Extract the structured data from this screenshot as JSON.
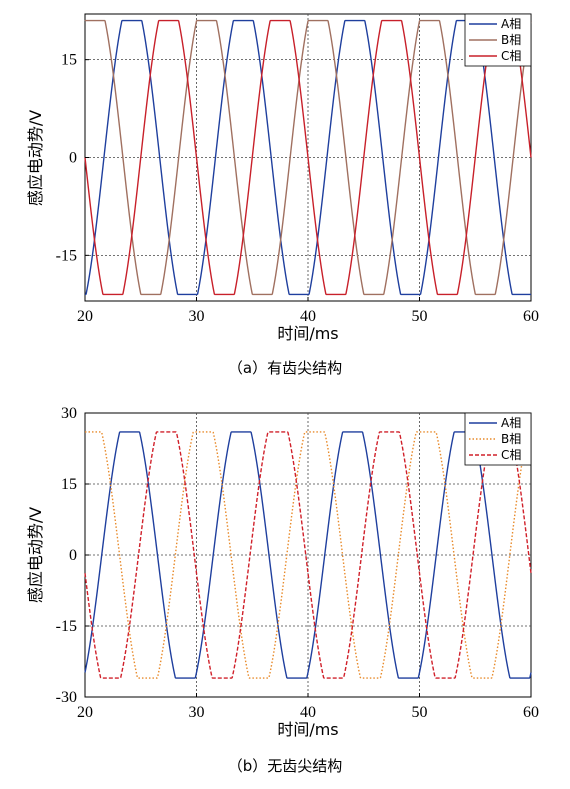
{
  "chart_data": [
    {
      "type": "line",
      "caption": "（a）有齿尖结构",
      "xlabel": "时间/ms",
      "ylabel": "感应电动势/V",
      "xlim": [
        20,
        60
      ],
      "ylim": [
        -22,
        22
      ],
      "xticks": [
        20,
        30,
        40,
        50,
        60
      ],
      "yticks": [
        15,
        0,
        -15
      ],
      "grid": true,
      "legend_position": "top-right",
      "period_ms": 10,
      "series": [
        {
          "name": "A相",
          "color": "#1f3f9e",
          "dash": "",
          "amplitude": 21,
          "peak_time_ms": 24.2
        },
        {
          "name": "B相",
          "color": "#a07060",
          "dash": "",
          "amplitude": 21,
          "peak_time_ms": 20.9
        },
        {
          "name": "C相",
          "color": "#c8202a",
          "dash": "",
          "amplitude": 21,
          "peak_time_ms": 27.5
        }
      ]
    },
    {
      "type": "line",
      "caption": "（b）无齿尖结构",
      "xlabel": "时间/ms",
      "ylabel": "感应电动势/V",
      "xlim": [
        20,
        60
      ],
      "ylim": [
        -30,
        30
      ],
      "xticks": [
        20,
        30,
        40,
        50,
        60
      ],
      "yticks": [
        30,
        15,
        0,
        -15,
        -30
      ],
      "grid": true,
      "legend_position": "top-right",
      "period_ms": 10,
      "series": [
        {
          "name": "A相",
          "color": "#1f3f9e",
          "dash": "",
          "amplitude": 26,
          "peak_time_ms": 24.0
        },
        {
          "name": "B相",
          "color": "#e88a2a",
          "dash": "1.5,2",
          "amplitude": 26,
          "peak_time_ms": 20.6
        },
        {
          "name": "C相",
          "color": "#d0202a",
          "dash": "4,2",
          "amplitude": 26,
          "peak_time_ms": 27.3
        }
      ]
    }
  ]
}
